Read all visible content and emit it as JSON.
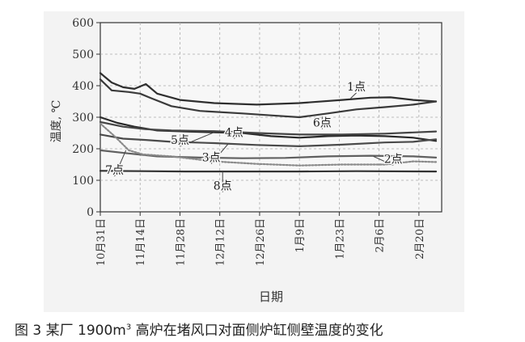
{
  "caption": {
    "prefix": "图 3 某厂 1900m",
    "sup": "3",
    "suffix": " 高炉在堵风口对面侧炉缸侧壁温度的变化"
  },
  "chart_data": {
    "type": "line",
    "title": "",
    "xlabel": "日期",
    "ylabel": "温度, ℃",
    "ylim": [
      0,
      600
    ],
    "yticks": [
      0,
      100,
      200,
      300,
      400,
      500,
      600
    ],
    "x_start": "10月31日",
    "x_end": "2月28日",
    "xticks": [
      "10月31日",
      "11月14日",
      "11月28日",
      "12月12日",
      "12月26日",
      "1月9日",
      "1月23日",
      "2月6日",
      "2月20日"
    ],
    "grid": true,
    "series": [
      {
        "name": "1点",
        "color": "#2e2e2e",
        "dash": "",
        "points": [
          [
            0,
            440
          ],
          [
            4,
            410
          ],
          [
            8,
            395
          ],
          [
            12,
            390
          ],
          [
            16,
            405
          ],
          [
            20,
            375
          ],
          [
            28,
            355
          ],
          [
            40,
            345
          ],
          [
            55,
            340
          ],
          [
            70,
            345
          ],
          [
            85,
            355
          ],
          [
            95,
            362
          ],
          [
            102,
            363
          ],
          [
            110,
            355
          ],
          [
            118,
            350
          ]
        ]
      },
      {
        "name": "6点",
        "color": "#3a3a3a",
        "dash": "",
        "points": [
          [
            0,
            420
          ],
          [
            4,
            385
          ],
          [
            10,
            380
          ],
          [
            14,
            375
          ],
          [
            18,
            360
          ],
          [
            25,
            335
          ],
          [
            35,
            320
          ],
          [
            50,
            312
          ],
          [
            60,
            306
          ],
          [
            70,
            300
          ],
          [
            80,
            312
          ],
          [
            90,
            325
          ],
          [
            100,
            332
          ],
          [
            110,
            340
          ],
          [
            118,
            350
          ]
        ]
      },
      {
        "name": "4点",
        "color": "#2a2a2a",
        "dash": "",
        "points": [
          [
            0,
            300
          ],
          [
            6,
            282
          ],
          [
            12,
            270
          ],
          [
            20,
            258
          ],
          [
            30,
            255
          ],
          [
            40,
            252
          ],
          [
            50,
            250
          ],
          [
            60,
            240
          ],
          [
            70,
            235
          ],
          [
            80,
            240
          ],
          [
            90,
            242
          ],
          [
            100,
            240
          ],
          [
            110,
            235
          ],
          [
            118,
            225
          ]
        ]
      },
      {
        "name": "5点",
        "color": "#454545",
        "dash": "",
        "points": [
          [
            0,
            285
          ],
          [
            8,
            270
          ],
          [
            16,
            262
          ],
          [
            25,
            258
          ],
          [
            40,
            256
          ],
          [
            55,
            250
          ],
          [
            70,
            245
          ],
          [
            85,
            245
          ],
          [
            100,
            248
          ],
          [
            118,
            255
          ]
        ]
      },
      {
        "name": "3点",
        "color": "#4a4a4a",
        "dash": "",
        "points": [
          [
            0,
            245
          ],
          [
            8,
            232
          ],
          [
            16,
            228
          ],
          [
            25,
            222
          ],
          [
            40,
            218
          ],
          [
            55,
            212
          ],
          [
            70,
            208
          ],
          [
            85,
            213
          ],
          [
            100,
            220
          ],
          [
            110,
            222
          ],
          [
            118,
            230
          ]
        ]
      },
      {
        "name": "2点",
        "color": "#606060",
        "dash": "",
        "points": [
          [
            0,
            195
          ],
          [
            10,
            185
          ],
          [
            20,
            176
          ],
          [
            35,
            172
          ],
          [
            50,
            170
          ],
          [
            65,
            171
          ],
          [
            80,
            176
          ],
          [
            95,
            178
          ],
          [
            110,
            176
          ],
          [
            118,
            172
          ]
        ]
      },
      {
        "name": "7点",
        "color": "#8a8a8a",
        "dash": "2 2",
        "points": [
          [
            0,
            280
          ],
          [
            5,
            240
          ],
          [
            10,
            195
          ],
          [
            15,
            182
          ],
          [
            25,
            176
          ],
          [
            40,
            160
          ],
          [
            55,
            152
          ],
          [
            70,
            147
          ],
          [
            85,
            150
          ],
          [
            100,
            150
          ],
          [
            110,
            160
          ],
          [
            118,
            158
          ]
        ]
      },
      {
        "name": "8点",
        "color": "#333333",
        "dash": "",
        "points": [
          [
            0,
            130
          ],
          [
            15,
            129
          ],
          [
            30,
            128
          ],
          [
            50,
            128
          ],
          [
            70,
            128
          ],
          [
            90,
            129
          ],
          [
            118,
            128
          ]
        ]
      }
    ],
    "annotations": [
      {
        "label": "1点",
        "at": [
          90,
          385
        ],
        "lineTo": [
          88,
          360
        ]
      },
      {
        "label": "6点",
        "at": [
          78,
          270
        ],
        "lineTo": [
          78,
          302
        ]
      },
      {
        "label": "5点",
        "at": [
          28,
          215
        ],
        "lineTo": [
          40,
          252
        ]
      },
      {
        "label": "4点",
        "at": [
          47,
          240
        ],
        "lineTo": [
          50,
          250
        ]
      },
      {
        "label": "3点",
        "at": [
          39,
          160
        ],
        "lineTo": [
          45,
          216
        ]
      },
      {
        "label": "2点",
        "at": [
          103,
          155
        ],
        "lineTo": [
          96,
          176
        ]
      },
      {
        "label": "7点",
        "at": [
          5,
          120
        ],
        "lineTo": [
          9,
          195
        ]
      },
      {
        "label": "8点",
        "at": [
          43,
          70
        ],
        "lineTo": [
          43,
          128
        ]
      }
    ]
  }
}
